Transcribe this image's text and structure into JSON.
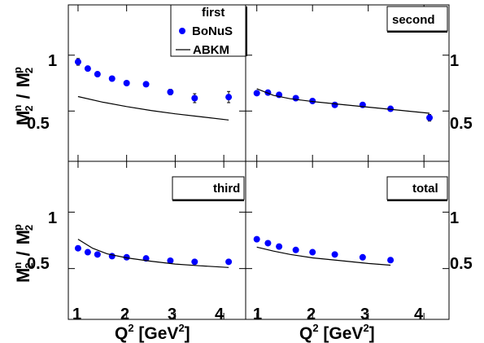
{
  "chart_data": [
    {
      "type": "scatter",
      "title": "first",
      "xlim": [
        0.8,
        4.45
      ],
      "ylim": [
        0.05,
        1.45
      ],
      "series": [
        {
          "name": "BoNuS",
          "kind": "points",
          "color": "#0000ff",
          "x": [
            1.0,
            1.2,
            1.4,
            1.7,
            2.0,
            2.4,
            2.9,
            3.4,
            4.1
          ],
          "y": [
            0.94,
            0.88,
            0.83,
            0.79,
            0.75,
            0.74,
            0.67,
            0.615,
            0.625
          ],
          "err": [
            0.03,
            0.015,
            0.015,
            0.015,
            0.015,
            0.015,
            0.025,
            0.04,
            0.05
          ]
        },
        {
          "name": "ABKM",
          "kind": "line",
          "color": "#000000",
          "x": [
            1.0,
            1.5,
            2.0,
            2.5,
            3.0,
            3.5,
            4.1
          ],
          "y": [
            0.63,
            0.58,
            0.54,
            0.505,
            0.475,
            0.45,
            0.42
          ]
        }
      ],
      "legend": {
        "position": "top-right",
        "title": "first"
      }
    },
    {
      "type": "scatter",
      "title": "second",
      "xlim": [
        0.8,
        4.45
      ],
      "ylim": [
        0.05,
        1.45
      ],
      "series": [
        {
          "name": "BoNuS",
          "kind": "points",
          "color": "#0000ff",
          "x": [
            1.0,
            1.2,
            1.4,
            1.7,
            2.0,
            2.4,
            2.9,
            3.4,
            4.1
          ],
          "y": [
            0.66,
            0.665,
            0.645,
            0.615,
            0.59,
            0.555,
            0.555,
            0.52,
            0.44
          ],
          "err": [
            0.015,
            0.01,
            0.01,
            0.01,
            0.01,
            0.01,
            0.01,
            0.015,
            0.03
          ]
        },
        {
          "name": "ABKM",
          "kind": "line",
          "color": "#000000",
          "x": [
            1.0,
            1.3,
            1.6,
            2.0,
            2.5,
            3.0,
            3.5,
            4.1
          ],
          "y": [
            0.7,
            0.64,
            0.61,
            0.585,
            0.56,
            0.535,
            0.51,
            0.48
          ]
        }
      ]
    },
    {
      "type": "scatter",
      "title": "third",
      "xlim": [
        0.8,
        4.45
      ],
      "ylim": [
        0.05,
        1.45
      ],
      "series": [
        {
          "name": "BoNuS",
          "kind": "points",
          "color": "#0000ff",
          "x": [
            1.0,
            1.2,
            1.4,
            1.7,
            2.0,
            2.4,
            2.9,
            3.4,
            4.1
          ],
          "y": [
            0.68,
            0.645,
            0.625,
            0.61,
            0.6,
            0.59,
            0.57,
            0.56,
            0.56
          ],
          "err": [
            0.01,
            0.01,
            0.01,
            0.01,
            0.01,
            0.01,
            0.01,
            0.01,
            0.015
          ]
        },
        {
          "name": "ABKM",
          "kind": "line",
          "color": "#000000",
          "x": [
            1.0,
            1.3,
            1.6,
            2.0,
            2.5,
            3.0,
            3.5,
            4.1
          ],
          "y": [
            0.76,
            0.68,
            0.63,
            0.595,
            0.565,
            0.54,
            0.525,
            0.51
          ]
        }
      ]
    },
    {
      "type": "scatter",
      "title": "total",
      "xlim": [
        0.8,
        4.45
      ],
      "ylim": [
        0.05,
        1.45
      ],
      "series": [
        {
          "name": "BoNuS",
          "kind": "points",
          "color": "#0000ff",
          "x": [
            1.0,
            1.2,
            1.4,
            1.7,
            2.0,
            2.4,
            2.9,
            3.4
          ],
          "y": [
            0.76,
            0.725,
            0.695,
            0.665,
            0.645,
            0.625,
            0.6,
            0.575
          ],
          "err": [
            0.01,
            0.01,
            0.01,
            0.01,
            0.01,
            0.01,
            0.01,
            0.01
          ]
        },
        {
          "name": "ABKM",
          "kind": "line",
          "color": "#000000",
          "x": [
            1.0,
            1.3,
            1.6,
            2.0,
            2.5,
            3.0,
            3.4
          ],
          "y": [
            0.69,
            0.655,
            0.625,
            0.595,
            0.57,
            0.545,
            0.53
          ]
        }
      ]
    }
  ],
  "axes": {
    "x_label_main": "Q",
    "x_label_sup": "2",
    "x_label_open": " [GeV",
    "x_label_unit_sup": "2",
    "x_label_close": "]",
    "y_label_num": "M",
    "y_label_num_sup": "n",
    "y_label_num_sub": "2",
    "y_label_sep": "/",
    "y_label_den": "M",
    "y_label_den_sup": "p",
    "y_label_den_sub": "2",
    "x_ticks": [
      "1",
      "2",
      "3",
      "4"
    ],
    "x_tick_values": [
      1,
      2,
      3,
      4
    ],
    "y_ticks": [
      "1",
      "0.5"
    ],
    "y_tick_values": [
      1.0,
      0.5
    ]
  },
  "legend": {
    "title": "first",
    "points_label": "BoNuS",
    "line_label": "ABKM"
  },
  "panel_titles": [
    "first",
    "second",
    "third",
    "total"
  ],
  "colors": {
    "points": "#0000ff",
    "line": "#000000",
    "frame": "#000000"
  }
}
